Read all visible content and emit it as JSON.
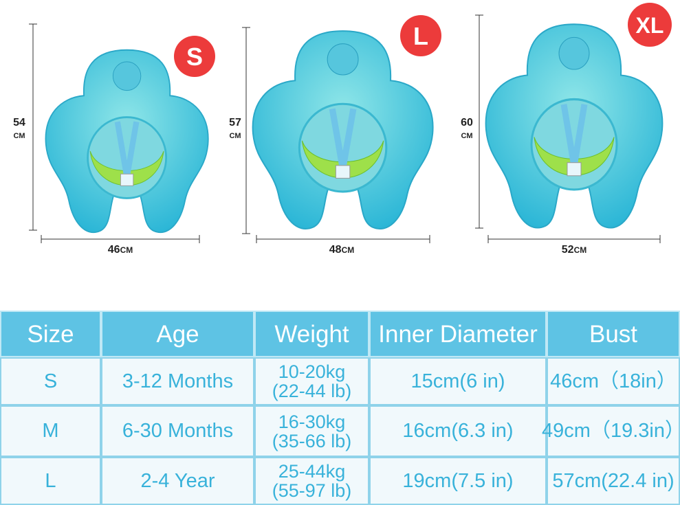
{
  "badges": [
    "S",
    "L",
    "XL"
  ],
  "floats": [
    {
      "height": "54",
      "height_unit": "CM",
      "width": "46",
      "width_unit": "CM"
    },
    {
      "height": "57",
      "height_unit": "CM",
      "width": "48",
      "width_unit": "CM"
    },
    {
      "height": "60",
      "height_unit": "CM",
      "width": "52",
      "width_unit": "CM"
    }
  ],
  "table": {
    "header": [
      "Size",
      "Age",
      "Weight",
      "Inner Diameter",
      "Bust"
    ],
    "rows": [
      [
        "S",
        "3-12 Months",
        [
          "10-20kg",
          "(22-44 lb)"
        ],
        "15cm(6 in)",
        "46cm（18in）"
      ],
      [
        "M",
        "6-30 Months",
        [
          "16-30kg",
          "(35-66 lb)"
        ],
        "16cm(6.3 in)",
        "49cm（19.3in）"
      ],
      [
        "L",
        "2-4 Year",
        [
          "25-44kg",
          "(55-97 lb)"
        ],
        "19cm(7.5 in)",
        "57cm(22.4 in)"
      ]
    ]
  }
}
